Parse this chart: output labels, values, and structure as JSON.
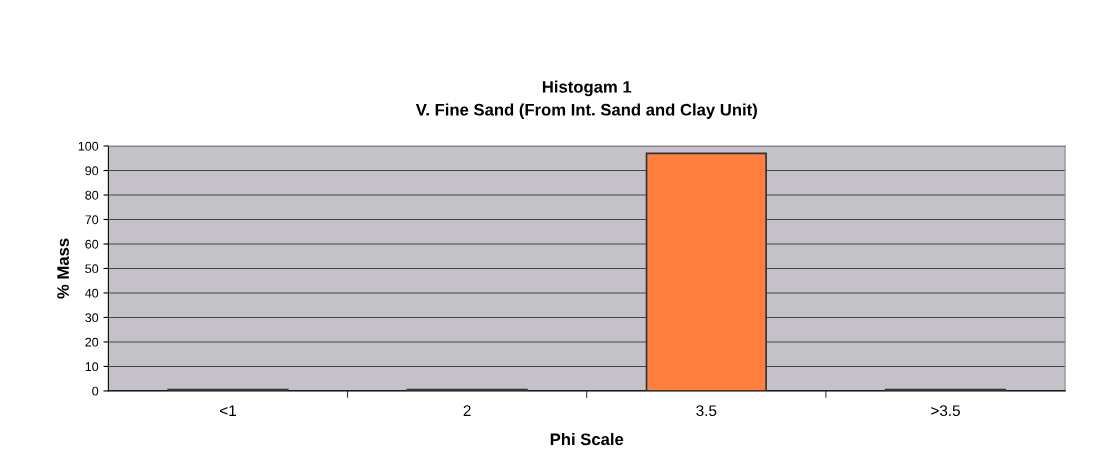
{
  "chart_data": {
    "type": "bar",
    "title": "Histogam 1\nV. Fine Sand (From Int. Sand and Clay Unit)",
    "xlabel": "Phi Scale",
    "ylabel": "% Mass",
    "categories": [
      "<1",
      "2",
      "3.5",
      ">3.5"
    ],
    "values": [
      0.5,
      0.5,
      97,
      0.5
    ],
    "color": "#ff7f3f",
    "ylim": [
      0,
      100
    ],
    "yticks": [
      0,
      10,
      20,
      30,
      40,
      50,
      60,
      70,
      80,
      90,
      100
    ],
    "grid": "y"
  }
}
